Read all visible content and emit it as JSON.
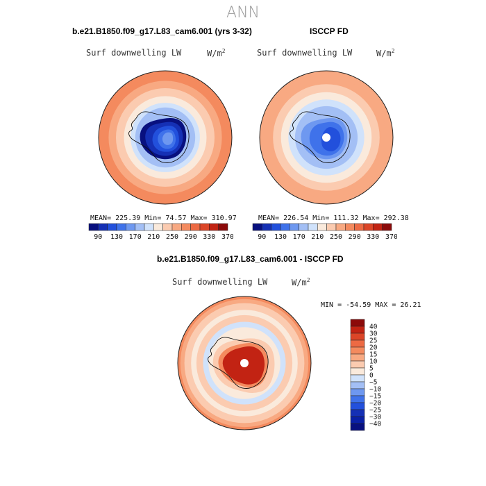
{
  "title": "ANN",
  "colors": {
    "deep_blue": "#08107f",
    "mid_blue": "#2f63e8",
    "light_blue": "#c9ddfa",
    "cream": "#fae6d5",
    "salmon": "#f5a070",
    "orange_red": "#e8502d"
  },
  "chart_data": [
    {
      "type": "polar-map",
      "title": "b.e21.B1850.f09_g17.L83_cam6.001 (yrs 3-32)",
      "variable": "Surf downwelling LW",
      "units_prefix": "W/m",
      "units_exp": "2",
      "stats": {
        "label": "MEAN= 225.39  Min=   74.57  Max= 310.97",
        "mean": 225.39,
        "min": 74.57,
        "max": 310.97
      },
      "colorbar": {
        "orientation": "horizontal",
        "ticks": [
          "90",
          "130",
          "170",
          "210",
          "250",
          "290",
          "330",
          "370"
        ],
        "colors": [
          "#08107f",
          "#1530b5",
          "#2250dc",
          "#3f72ea",
          "#6e98f0",
          "#a3bff5",
          "#d0e2fb",
          "#faeadc",
          "#fbcbb0",
          "#f8a982",
          "#f48a5e",
          "#ed6a43",
          "#dc4527",
          "#c22313",
          "#8c0a0a"
        ]
      },
      "blobs": [
        {
          "lvl": 0,
          "pts": [
            [
              -0.07,
              -0.28
            ],
            [
              0.12,
              -0.3
            ],
            [
              0.26,
              -0.24
            ],
            [
              0.32,
              -0.08
            ],
            [
              0.31,
              0.1
            ],
            [
              0.22,
              0.26
            ],
            [
              0.07,
              0.33
            ],
            [
              -0.1,
              0.32
            ],
            [
              -0.27,
              0.24
            ],
            [
              -0.38,
              0.08
            ],
            [
              -0.38,
              -0.1
            ],
            [
              -0.28,
              -0.22
            ]
          ]
        },
        {
          "lvl": 1,
          "pts": [
            [
              -0.06,
              -0.22
            ],
            [
              0.1,
              -0.24
            ],
            [
              0.22,
              -0.18
            ],
            [
              0.27,
              -0.05
            ],
            [
              0.26,
              0.09
            ],
            [
              0.18,
              0.22
            ],
            [
              0.05,
              0.28
            ],
            [
              -0.09,
              0.27
            ],
            [
              -0.22,
              0.2
            ],
            [
              -0.3,
              0.06
            ],
            [
              -0.3,
              -0.08
            ],
            [
              -0.22,
              -0.18
            ]
          ]
        },
        {
          "lvl": 2,
          "pts": [
            [
              -0.02,
              -0.17
            ],
            [
              0.1,
              -0.18
            ],
            [
              0.18,
              -0.12
            ],
            [
              0.21,
              0.0
            ],
            [
              0.2,
              0.12
            ],
            [
              0.12,
              0.2
            ],
            [
              0.02,
              0.22
            ],
            [
              -0.1,
              0.2
            ],
            [
              -0.18,
              0.12
            ],
            [
              -0.2,
              0.0
            ],
            [
              -0.14,
              -0.12
            ]
          ]
        },
        {
          "lvl": 3,
          "pts": [
            [
              0.0,
              -0.12
            ],
            [
              0.1,
              -0.12
            ],
            [
              0.15,
              -0.04
            ],
            [
              0.16,
              0.06
            ],
            [
              0.12,
              0.15
            ],
            [
              0.03,
              0.18
            ],
            [
              -0.06,
              0.15
            ],
            [
              -0.12,
              0.05
            ],
            [
              -0.1,
              -0.06
            ]
          ]
        },
        {
          "lvl": 4,
          "pts": [
            [
              0.03,
              -0.08
            ],
            [
              0.1,
              -0.07
            ],
            [
              0.12,
              0.0
            ],
            [
              0.11,
              0.08
            ],
            [
              0.05,
              0.12
            ],
            [
              -0.02,
              0.1
            ],
            [
              -0.05,
              0.02
            ],
            [
              -0.02,
              -0.05
            ]
          ]
        }
      ],
      "rings": [
        {
          "r": 1.0,
          "lvl": 10
        },
        {
          "r": 0.93,
          "lvl": 10
        },
        {
          "r": 0.85,
          "lvl": 9
        },
        {
          "r": 0.74,
          "lvl": 8
        },
        {
          "r": 0.62,
          "lvl": 7
        },
        {
          "r": 0.52,
          "lvl": 6
        },
        {
          "r": 0.45,
          "lvl": 5
        }
      ],
      "pole_dot": false
    },
    {
      "type": "polar-map",
      "title": "ISCCP FD",
      "variable": "Surf downwelling LW",
      "units_prefix": "W/m",
      "units_exp": "2",
      "stats": {
        "label": "MEAN= 226.54  Min=  111.32  Max= 292.38",
        "mean": 226.54,
        "min": 111.32,
        "max": 292.38
      },
      "colorbar": {
        "orientation": "horizontal",
        "ticks": [
          "90",
          "130",
          "170",
          "210",
          "250",
          "290",
          "330",
          "370"
        ],
        "colors": [
          "#08107f",
          "#1530b5",
          "#2250dc",
          "#3f72ea",
          "#6e98f0",
          "#a3bff5",
          "#d0e2fb",
          "#faeadc",
          "#fbcbb0",
          "#f8a982",
          "#f48a5e",
          "#ed6a43",
          "#dc4527",
          "#c22313",
          "#8c0a0a"
        ]
      },
      "blobs": [
        {
          "lvl": 4,
          "pts": [
            [
              -0.07,
              -0.28
            ],
            [
              0.12,
              -0.3
            ],
            [
              0.26,
              -0.24
            ],
            [
              0.32,
              -0.08
            ],
            [
              0.31,
              0.1
            ],
            [
              0.22,
              0.26
            ],
            [
              0.07,
              0.33
            ],
            [
              -0.1,
              0.32
            ],
            [
              -0.27,
              0.24
            ],
            [
              -0.38,
              0.08
            ],
            [
              -0.38,
              -0.1
            ],
            [
              -0.28,
              -0.22
            ]
          ]
        },
        {
          "lvl": 3,
          "pts": [
            [
              -0.04,
              -0.22
            ],
            [
              0.1,
              -0.24
            ],
            [
              0.22,
              -0.18
            ],
            [
              0.27,
              -0.05
            ],
            [
              0.26,
              0.09
            ],
            [
              0.18,
              0.22
            ],
            [
              0.05,
              0.28
            ],
            [
              -0.09,
              0.26
            ],
            [
              -0.2,
              0.18
            ],
            [
              -0.26,
              0.05
            ],
            [
              -0.24,
              -0.1
            ],
            [
              -0.16,
              -0.19
            ]
          ]
        },
        {
          "lvl": 2,
          "pts": [
            [
              0.02,
              -0.16
            ],
            [
              0.12,
              -0.15
            ],
            [
              0.2,
              -0.08
            ],
            [
              0.22,
              0.04
            ],
            [
              0.18,
              0.16
            ],
            [
              0.08,
              0.22
            ],
            [
              -0.04,
              0.18
            ],
            [
              -0.08,
              0.08
            ],
            [
              -0.06,
              -0.06
            ]
          ]
        }
      ],
      "rings": [
        {
          "r": 1.0,
          "lvl": 9
        },
        {
          "r": 0.9,
          "lvl": 9
        },
        {
          "r": 0.8,
          "lvl": 8
        },
        {
          "r": 0.68,
          "lvl": 7
        },
        {
          "r": 0.57,
          "lvl": 6
        },
        {
          "r": 0.47,
          "lvl": 5
        }
      ],
      "pole_dot": true
    },
    {
      "type": "polar-map",
      "title": "b.e21.B1850.f09_g17.L83_cam6.001 - ISCCP FD",
      "variable": "Surf downwelling LW",
      "units_prefix": "W/m",
      "units_exp": "2",
      "stats": {
        "label": "MIN = -54.59 MAX =  26.21",
        "min": -54.59,
        "max": 26.21
      },
      "colorbar": {
        "orientation": "vertical",
        "ticks": [
          "40",
          "30",
          "25",
          "20",
          "15",
          "10",
          "5",
          "0",
          "−5",
          "−10",
          "−15",
          "−20",
          "−25",
          "−30",
          "−40"
        ],
        "colors": [
          "#8c0a0a",
          "#c22313",
          "#dc4527",
          "#ed6a43",
          "#f48a5e",
          "#f8a982",
          "#fbcbb0",
          "#faeadc",
          "#d0e2fb",
          "#a3bff5",
          "#6e98f0",
          "#3f72ea",
          "#2250dc",
          "#1530b5",
          "#0a20a6",
          "#08107f"
        ]
      },
      "blobs": [
        {
          "lvl": 9,
          "pts": [
            [
              -0.1,
              -0.36
            ],
            [
              0.2,
              -0.38
            ],
            [
              0.4,
              -0.26
            ],
            [
              0.46,
              -0.05
            ],
            [
              0.44,
              0.2
            ],
            [
              0.34,
              0.4
            ],
            [
              0.14,
              0.46
            ],
            [
              -0.06,
              0.42
            ],
            [
              -0.3,
              0.34
            ],
            [
              -0.46,
              0.14
            ],
            [
              -0.48,
              -0.1
            ],
            [
              -0.36,
              -0.28
            ]
          ]
        },
        {
          "lvl": 11,
          "pts": [
            [
              -0.07,
              -0.29
            ],
            [
              0.14,
              -0.31
            ],
            [
              0.3,
              -0.22
            ],
            [
              0.36,
              -0.04
            ],
            [
              0.34,
              0.16
            ],
            [
              0.26,
              0.32
            ],
            [
              0.1,
              0.38
            ],
            [
              -0.06,
              0.34
            ],
            [
              -0.24,
              0.27
            ],
            [
              -0.38,
              0.1
            ],
            [
              -0.4,
              -0.08
            ],
            [
              -0.28,
              -0.22
            ]
          ]
        },
        {
          "lvl": 14,
          "pts": [
            [
              -0.04,
              -0.24
            ],
            [
              0.12,
              -0.26
            ],
            [
              0.26,
              -0.18
            ],
            [
              0.31,
              -0.02
            ],
            [
              0.29,
              0.14
            ],
            [
              0.22,
              0.28
            ],
            [
              0.08,
              0.33
            ],
            [
              -0.06,
              0.3
            ],
            [
              -0.2,
              0.23
            ],
            [
              -0.32,
              0.08
            ],
            [
              -0.33,
              -0.06
            ],
            [
              -0.22,
              -0.18
            ]
          ]
        }
      ],
      "rings": [
        {
          "r": 1.0,
          "lvl": 11
        },
        {
          "r": 0.96,
          "lvl": 10
        },
        {
          "r": 0.9,
          "lvl": 9
        },
        {
          "r": 0.8,
          "lvl": 8
        },
        {
          "r": 0.72,
          "lvl": 9
        },
        {
          "r": 0.62,
          "lvl": 7
        },
        {
          "r": 0.54,
          "lvl": 8
        }
      ],
      "pole_dot": true
    }
  ]
}
